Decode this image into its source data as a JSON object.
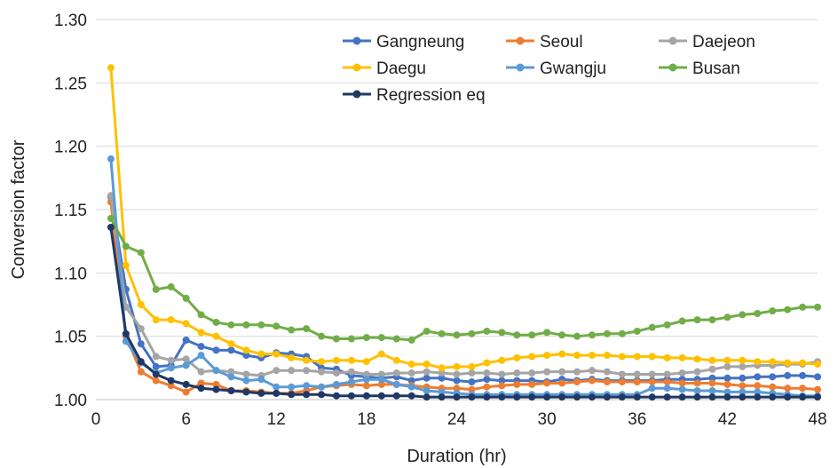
{
  "chart_data": {
    "type": "line",
    "xlabel": "Duration (hr)",
    "ylabel": "Conversion factor",
    "xlim": [
      0,
      48
    ],
    "ylim": [
      1.0,
      1.3
    ],
    "x_ticks": [
      0,
      6,
      12,
      18,
      24,
      30,
      36,
      42,
      48
    ],
    "y_ticks": [
      1.0,
      1.05,
      1.1,
      1.15,
      1.2,
      1.25,
      1.3
    ],
    "y_tick_labels": [
      "1.00",
      "1.05",
      "1.10",
      "1.15",
      "1.20",
      "1.25",
      "1.30"
    ],
    "grid": "horizontal",
    "legend_position": "top-right",
    "x": [
      1,
      2,
      3,
      4,
      5,
      6,
      7,
      8,
      9,
      10,
      11,
      12,
      13,
      14,
      15,
      16,
      17,
      18,
      19,
      20,
      21,
      22,
      23,
      24,
      25,
      26,
      27,
      28,
      29,
      30,
      31,
      32,
      33,
      34,
      35,
      36,
      37,
      38,
      39,
      40,
      41,
      42,
      43,
      44,
      45,
      46,
      47,
      48
    ],
    "series": [
      {
        "name": "Gangneung",
        "color": "#4472c4",
        "values": [
          1.16,
          1.087,
          1.044,
          1.026,
          1.027,
          1.047,
          1.042,
          1.039,
          1.039,
          1.035,
          1.033,
          1.037,
          1.036,
          1.034,
          1.025,
          1.024,
          1.019,
          1.018,
          1.017,
          1.018,
          1.015,
          1.017,
          1.017,
          1.015,
          1.014,
          1.016,
          1.015,
          1.015,
          1.015,
          1.014,
          1.016,
          1.015,
          1.016,
          1.015,
          1.015,
          1.015,
          1.015,
          1.016,
          1.016,
          1.016,
          1.017,
          1.017,
          1.017,
          1.018,
          1.018,
          1.019,
          1.019,
          1.018
        ]
      },
      {
        "name": "Seoul",
        "color": "#ed7d31",
        "values": [
          1.156,
          1.05,
          1.022,
          1.015,
          1.011,
          1.006,
          1.013,
          1.012,
          1.007,
          1.007,
          1.006,
          1.005,
          1.005,
          1.007,
          1.01,
          1.011,
          1.012,
          1.011,
          1.012,
          1.012,
          1.011,
          1.01,
          1.009,
          1.009,
          1.008,
          1.01,
          1.011,
          1.012,
          1.012,
          1.013,
          1.013,
          1.014,
          1.015,
          1.014,
          1.014,
          1.014,
          1.014,
          1.014,
          1.013,
          1.013,
          1.013,
          1.012,
          1.011,
          1.011,
          1.01,
          1.009,
          1.009,
          1.008
        ]
      },
      {
        "name": "Daejeon",
        "color": "#a5a5a5",
        "values": [
          1.161,
          1.073,
          1.056,
          1.034,
          1.031,
          1.032,
          1.022,
          1.023,
          1.022,
          1.02,
          1.019,
          1.023,
          1.023,
          1.023,
          1.022,
          1.021,
          1.022,
          1.02,
          1.02,
          1.021,
          1.021,
          1.022,
          1.021,
          1.02,
          1.021,
          1.021,
          1.02,
          1.021,
          1.021,
          1.022,
          1.022,
          1.022,
          1.023,
          1.022,
          1.02,
          1.02,
          1.02,
          1.02,
          1.021,
          1.022,
          1.024,
          1.026,
          1.026,
          1.027,
          1.027,
          1.028,
          1.028,
          1.03
        ]
      },
      {
        "name": "Daegu",
        "color": "#ffc000",
        "values": [
          1.262,
          1.106,
          1.075,
          1.063,
          1.063,
          1.06,
          1.053,
          1.05,
          1.044,
          1.039,
          1.036,
          1.036,
          1.033,
          1.031,
          1.03,
          1.031,
          1.031,
          1.03,
          1.036,
          1.031,
          1.028,
          1.028,
          1.025,
          1.026,
          1.026,
          1.029,
          1.031,
          1.033,
          1.034,
          1.035,
          1.036,
          1.035,
          1.035,
          1.035,
          1.034,
          1.034,
          1.034,
          1.033,
          1.033,
          1.032,
          1.031,
          1.031,
          1.031,
          1.03,
          1.03,
          1.029,
          1.029,
          1.028
        ]
      },
      {
        "name": "Gwangju",
        "color": "#5b9bd5",
        "values": [
          1.19,
          1.046,
          1.029,
          1.021,
          1.025,
          1.027,
          1.035,
          1.023,
          1.018,
          1.015,
          1.016,
          1.01,
          1.01,
          1.011,
          1.01,
          1.012,
          1.014,
          1.016,
          1.016,
          1.012,
          1.01,
          1.007,
          1.006,
          1.005,
          1.004,
          1.004,
          1.004,
          1.004,
          1.004,
          1.004,
          1.004,
          1.004,
          1.004,
          1.004,
          1.004,
          1.004,
          1.009,
          1.009,
          1.008,
          1.007,
          1.007,
          1.006,
          1.006,
          1.006,
          1.005,
          1.004,
          1.003,
          1.003
        ]
      },
      {
        "name": "Busan",
        "color": "#70ad47",
        "values": [
          1.143,
          1.121,
          1.116,
          1.087,
          1.089,
          1.08,
          1.067,
          1.061,
          1.059,
          1.059,
          1.059,
          1.058,
          1.055,
          1.056,
          1.05,
          1.048,
          1.048,
          1.049,
          1.049,
          1.048,
          1.047,
          1.054,
          1.052,
          1.051,
          1.052,
          1.054,
          1.053,
          1.051,
          1.051,
          1.053,
          1.051,
          1.05,
          1.051,
          1.052,
          1.052,
          1.054,
          1.057,
          1.059,
          1.062,
          1.063,
          1.063,
          1.065,
          1.067,
          1.068,
          1.07,
          1.071,
          1.073,
          1.073
        ]
      },
      {
        "name": "Regression eq",
        "color": "#203864",
        "values": [
          1.136,
          1.052,
          1.03,
          1.02,
          1.015,
          1.012,
          1.009,
          1.008,
          1.007,
          1.006,
          1.005,
          1.005,
          1.004,
          1.004,
          1.004,
          1.003,
          1.003,
          1.003,
          1.003,
          1.003,
          1.003,
          1.002,
          1.002,
          1.002,
          1.002,
          1.002,
          1.002,
          1.002,
          1.002,
          1.002,
          1.002,
          1.002,
          1.002,
          1.002,
          1.002,
          1.002,
          1.002,
          1.002,
          1.002,
          1.002,
          1.002,
          1.002,
          1.002,
          1.002,
          1.002,
          1.002,
          1.002,
          1.002
        ]
      }
    ]
  }
}
